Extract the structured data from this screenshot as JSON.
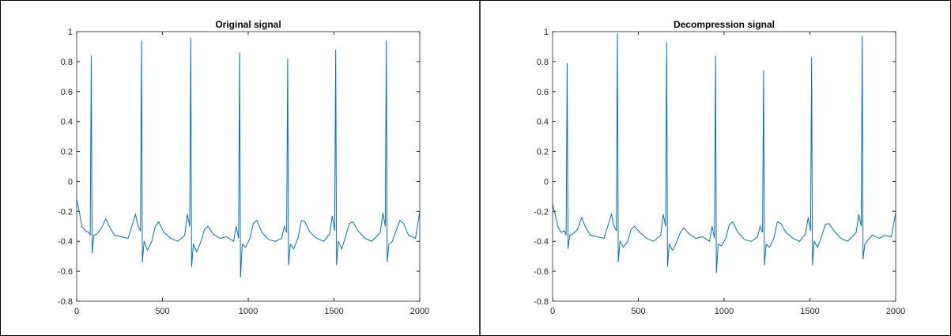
{
  "chart_data": [
    {
      "type": "line",
      "title": "Original signal",
      "color": "#0072bd",
      "xlim": [
        0,
        2000
      ],
      "ylim": [
        -0.8,
        1
      ],
      "xticks": [
        0,
        500,
        1000,
        1500,
        2000
      ],
      "yticks": [
        -0.8,
        -0.6,
        -0.4,
        -0.2,
        0,
        0.2,
        0.4,
        0.6,
        0.8,
        1
      ],
      "x": [
        0,
        15,
        30,
        50,
        70,
        79,
        85,
        90,
        100,
        120,
        145,
        170,
        190,
        220,
        260,
        300,
        343,
        358,
        372,
        378,
        383,
        393,
        413,
        438,
        458,
        478,
        508,
        548,
        588,
        630,
        645,
        659,
        665,
        670,
        680,
        700,
        725,
        745,
        765,
        795,
        835,
        875,
        915,
        930,
        944,
        950,
        955,
        965,
        985,
        1010,
        1030,
        1050,
        1080,
        1120,
        1160,
        1195,
        1210,
        1224,
        1230,
        1235,
        1245,
        1265,
        1290,
        1310,
        1330,
        1360,
        1400,
        1440,
        1475,
        1490,
        1504,
        1510,
        1515,
        1525,
        1545,
        1570,
        1590,
        1610,
        1640,
        1680,
        1720,
        1770,
        1785,
        1799,
        1805,
        1810,
        1820,
        1840,
        1865,
        1885,
        1905,
        1935,
        1975,
        2000
      ],
      "values": [
        -0.12,
        -0.2,
        -0.3,
        -0.33,
        -0.34,
        -0.36,
        0.84,
        -0.48,
        -0.36,
        -0.35,
        -0.31,
        -0.25,
        -0.3,
        -0.36,
        -0.37,
        -0.38,
        -0.22,
        -0.3,
        -0.33,
        0.94,
        -0.54,
        -0.4,
        -0.46,
        -0.4,
        -0.3,
        -0.27,
        -0.34,
        -0.38,
        -0.4,
        -0.36,
        -0.22,
        -0.3,
        0.96,
        -0.57,
        -0.42,
        -0.47,
        -0.4,
        -0.32,
        -0.3,
        -0.35,
        -0.38,
        -0.37,
        -0.4,
        -0.3,
        -0.38,
        0.86,
        -0.64,
        -0.42,
        -0.44,
        -0.38,
        -0.28,
        -0.26,
        -0.34,
        -0.39,
        -0.4,
        -0.38,
        -0.3,
        -0.34,
        0.82,
        -0.56,
        -0.42,
        -0.45,
        -0.38,
        -0.26,
        -0.27,
        -0.34,
        -0.38,
        -0.4,
        -0.35,
        -0.23,
        -0.33,
        0.88,
        -0.56,
        -0.4,
        -0.45,
        -0.36,
        -0.28,
        -0.27,
        -0.33,
        -0.38,
        -0.4,
        -0.34,
        -0.21,
        -0.3,
        0.94,
        -0.54,
        -0.42,
        -0.4,
        -0.32,
        -0.26,
        -0.28,
        -0.36,
        -0.38,
        -0.2
      ]
    },
    {
      "type": "line",
      "title": "Decompression signal",
      "color": "#0072bd",
      "xlim": [
        0,
        2000
      ],
      "ylim": [
        -0.8,
        1
      ],
      "xticks": [
        0,
        500,
        1000,
        1500,
        2000
      ],
      "yticks": [
        -0.8,
        -0.6,
        -0.4,
        -0.2,
        0,
        0.2,
        0.4,
        0.6,
        0.8,
        1
      ],
      "x": [
        0,
        15,
        30,
        50,
        70,
        79,
        85,
        90,
        100,
        120,
        145,
        170,
        190,
        220,
        260,
        300,
        343,
        358,
        372,
        378,
        383,
        393,
        413,
        438,
        458,
        478,
        508,
        548,
        588,
        630,
        645,
        659,
        665,
        670,
        680,
        700,
        725,
        745,
        765,
        795,
        835,
        875,
        915,
        930,
        944,
        950,
        955,
        965,
        985,
        1010,
        1030,
        1050,
        1080,
        1120,
        1160,
        1195,
        1210,
        1224,
        1230,
        1235,
        1245,
        1265,
        1290,
        1310,
        1330,
        1360,
        1400,
        1440,
        1475,
        1490,
        1504,
        1510,
        1515,
        1525,
        1545,
        1570,
        1590,
        1610,
        1640,
        1680,
        1720,
        1770,
        1785,
        1799,
        1805,
        1810,
        1820,
        1840,
        1865,
        1885,
        1905,
        1935,
        1975,
        2000
      ],
      "values": [
        -0.15,
        -0.22,
        -0.3,
        -0.34,
        -0.33,
        -0.36,
        0.79,
        -0.45,
        -0.36,
        -0.35,
        -0.32,
        -0.24,
        -0.3,
        -0.36,
        -0.37,
        -0.38,
        -0.22,
        -0.3,
        -0.33,
        0.99,
        -0.54,
        -0.4,
        -0.44,
        -0.4,
        -0.32,
        -0.3,
        -0.34,
        -0.38,
        -0.4,
        -0.36,
        -0.22,
        -0.3,
        0.93,
        -0.57,
        -0.42,
        -0.46,
        -0.4,
        -0.34,
        -0.31,
        -0.35,
        -0.38,
        -0.37,
        -0.4,
        -0.3,
        -0.38,
        0.84,
        -0.61,
        -0.42,
        -0.43,
        -0.38,
        -0.29,
        -0.27,
        -0.34,
        -0.39,
        -0.4,
        -0.37,
        -0.3,
        -0.34,
        0.74,
        -0.56,
        -0.42,
        -0.44,
        -0.38,
        -0.27,
        -0.28,
        -0.34,
        -0.38,
        -0.4,
        -0.35,
        -0.24,
        -0.33,
        0.83,
        -0.56,
        -0.4,
        -0.44,
        -0.36,
        -0.29,
        -0.28,
        -0.33,
        -0.38,
        -0.4,
        -0.34,
        -0.22,
        -0.3,
        0.97,
        -0.52,
        -0.42,
        -0.39,
        -0.36,
        -0.37,
        -0.38,
        -0.36,
        -0.37,
        -0.21
      ]
    }
  ]
}
